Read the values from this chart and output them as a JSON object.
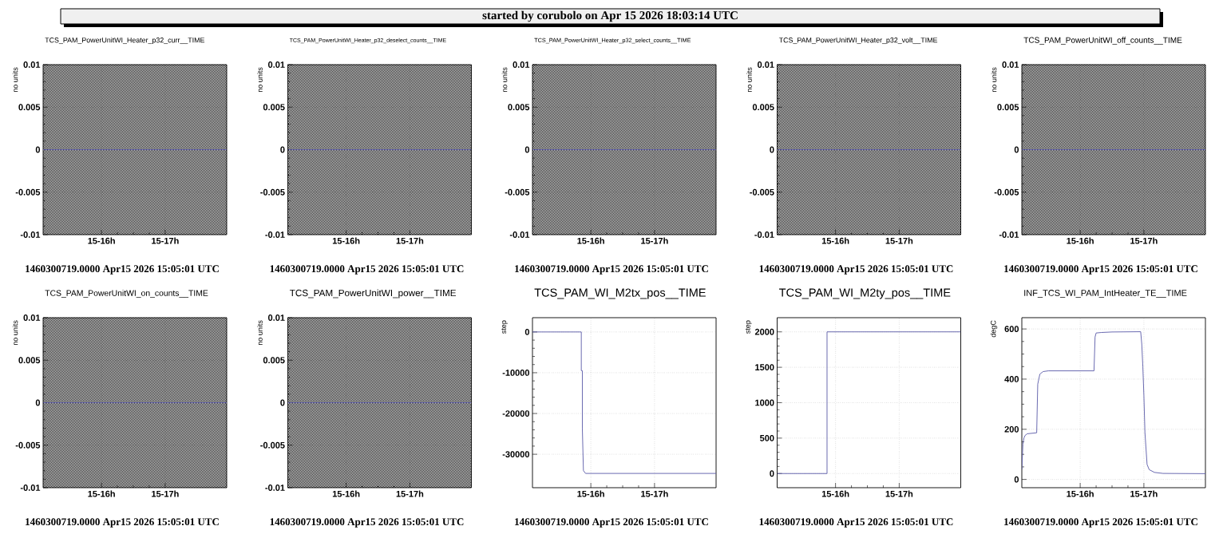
{
  "chart_data": [
    {
      "type": "other",
      "title": "started by corubolo on Apr 15 2026 18:03:14 UTC"
    },
    {
      "type": "line",
      "title": "TCS_PAM_PowerUnitWI_Heater_p32_curr__TIME",
      "ylabel": "no units",
      "xlim": [
        "2026-04-15T15:05",
        "2026-04-15T17:58"
      ],
      "xticks": [
        {
          "value": "2026-04-15T16:00",
          "label": "15-16h"
        },
        {
          "value": "2026-04-15T17:00",
          "label": "15-17h"
        }
      ],
      "ylim": [
        -0.01,
        0.01
      ],
      "yticks": [
        -0.01,
        -0.005,
        0,
        0.005,
        0.01
      ],
      "grid": true,
      "x": [
        "2026-04-15T15:05",
        "2026-04-15T17:58"
      ],
      "series": [
        {
          "color": "#5a5aa8",
          "values": [
            0,
            0
          ]
        }
      ],
      "bands": [
        {
          "axis": "x",
          "from": "2026-04-15T15:05",
          "to": "2026-04-15T17:58",
          "color": "#000000"
        }
      ],
      "annotations": [
        "1460300719.0000 Apr15 2026 15:05:01 UTC"
      ]
    },
    {
      "type": "line",
      "title": "TCS_PAM_PowerUnitWI_Heater_p32_deselect_counts__TIME",
      "ylabel": "no units",
      "xlim": [
        "2026-04-15T15:05",
        "2026-04-15T17:58"
      ],
      "xticks": [
        {
          "value": "2026-04-15T16:00",
          "label": "15-16h"
        },
        {
          "value": "2026-04-15T17:00",
          "label": "15-17h"
        }
      ],
      "ylim": [
        -0.01,
        0.01
      ],
      "yticks": [
        -0.01,
        -0.005,
        0,
        0.005,
        0.01
      ],
      "grid": true,
      "x": [
        "2026-04-15T15:05",
        "2026-04-15T17:58"
      ],
      "series": [
        {
          "color": "#5a5aa8",
          "values": [
            0,
            0
          ]
        }
      ],
      "bands": [
        {
          "axis": "x",
          "from": "2026-04-15T15:05",
          "to": "2026-04-15T17:58",
          "color": "#000000"
        }
      ],
      "annotations": [
        "1460300719.0000 Apr15 2026 15:05:01 UTC"
      ]
    },
    {
      "type": "line",
      "title": "TCS_PAM_PowerUnitWI_Heater_p32_select_counts__TIME",
      "ylabel": "no units",
      "xlim": [
        "2026-04-15T15:05",
        "2026-04-15T17:58"
      ],
      "xticks": [
        {
          "value": "2026-04-15T16:00",
          "label": "15-16h"
        },
        {
          "value": "2026-04-15T17:00",
          "label": "15-17h"
        }
      ],
      "ylim": [
        -0.01,
        0.01
      ],
      "yticks": [
        -0.01,
        -0.005,
        0,
        0.005,
        0.01
      ],
      "grid": true,
      "x": [
        "2026-04-15T15:05",
        "2026-04-15T17:58"
      ],
      "series": [
        {
          "color": "#5a5aa8",
          "values": [
            0,
            0
          ]
        }
      ],
      "bands": [
        {
          "axis": "x",
          "from": "2026-04-15T15:05",
          "to": "2026-04-15T17:58",
          "color": "#000000"
        }
      ],
      "annotations": [
        "1460300719.0000 Apr15 2026 15:05:01 UTC"
      ]
    },
    {
      "type": "line",
      "title": "TCS_PAM_PowerUnitWI_Heater_p32_volt__TIME",
      "ylabel": "no units",
      "xlim": [
        "2026-04-15T15:05",
        "2026-04-15T17:58"
      ],
      "xticks": [
        {
          "value": "2026-04-15T16:00",
          "label": "15-16h"
        },
        {
          "value": "2026-04-15T17:00",
          "label": "15-17h"
        }
      ],
      "ylim": [
        -0.01,
        0.01
      ],
      "yticks": [
        -0.01,
        -0.005,
        0,
        0.005,
        0.01
      ],
      "grid": true,
      "x": [
        "2026-04-15T15:05",
        "2026-04-15T17:58"
      ],
      "series": [
        {
          "color": "#5a5aa8",
          "values": [
            0,
            0
          ]
        }
      ],
      "bands": [
        {
          "axis": "x",
          "from": "2026-04-15T15:05",
          "to": "2026-04-15T17:58",
          "color": "#000000"
        }
      ],
      "annotations": [
        "1460300719.0000 Apr15 2026 15:05:01 UTC"
      ]
    },
    {
      "type": "line",
      "title": "TCS_PAM_PowerUnitWI_off_counts__TIME",
      "ylabel": "no units",
      "xlim": [
        "2026-04-15T15:05",
        "2026-04-15T17:58"
      ],
      "xticks": [
        {
          "value": "2026-04-15T16:00",
          "label": "15-16h"
        },
        {
          "value": "2026-04-15T17:00",
          "label": "15-17h"
        }
      ],
      "ylim": [
        -0.01,
        0.01
      ],
      "yticks": [
        -0.01,
        -0.005,
        0,
        0.005,
        0.01
      ],
      "grid": true,
      "x": [
        "2026-04-15T15:05",
        "2026-04-15T17:58"
      ],
      "series": [
        {
          "color": "#5a5aa8",
          "values": [
            0,
            0
          ]
        }
      ],
      "bands": [
        {
          "axis": "x",
          "from": "2026-04-15T15:05",
          "to": "2026-04-15T17:58",
          "color": "#000000"
        }
      ],
      "annotations": [
        "1460300719.0000 Apr15 2026 15:05:01 UTC"
      ]
    },
    {
      "type": "line",
      "title": "TCS_PAM_PowerUnitWI_on_counts__TIME",
      "ylabel": "no units",
      "xlim": [
        "2026-04-15T15:05",
        "2026-04-15T17:58"
      ],
      "xticks": [
        {
          "value": "2026-04-15T16:00",
          "label": "15-16h"
        },
        {
          "value": "2026-04-15T17:00",
          "label": "15-17h"
        }
      ],
      "ylim": [
        -0.01,
        0.01
      ],
      "yticks": [
        -0.01,
        -0.005,
        0,
        0.005,
        0.01
      ],
      "grid": true,
      "x": [
        "2026-04-15T15:05",
        "2026-04-15T17:58"
      ],
      "series": [
        {
          "color": "#5a5aa8",
          "values": [
            0,
            0
          ]
        }
      ],
      "bands": [
        {
          "axis": "x",
          "from": "2026-04-15T15:05",
          "to": "2026-04-15T17:58",
          "color": "#000000"
        }
      ],
      "annotations": [
        "1460300719.0000 Apr15 2026 15:05:01 UTC"
      ]
    },
    {
      "type": "line",
      "title": "TCS_PAM_PowerUnitWI_power__TIME",
      "ylabel": "no units",
      "xlim": [
        "2026-04-15T15:05",
        "2026-04-15T17:58"
      ],
      "xticks": [
        {
          "value": "2026-04-15T16:00",
          "label": "15-16h"
        },
        {
          "value": "2026-04-15T17:00",
          "label": "15-17h"
        }
      ],
      "ylim": [
        -0.01,
        0.01
      ],
      "yticks": [
        -0.01,
        -0.005,
        0,
        0.005,
        0.01
      ],
      "grid": true,
      "x": [
        "2026-04-15T15:05",
        "2026-04-15T17:58"
      ],
      "series": [
        {
          "color": "#5a5aa8",
          "values": [
            0,
            0
          ]
        }
      ],
      "bands": [
        {
          "axis": "x",
          "from": "2026-04-15T15:05",
          "to": "2026-04-15T17:58",
          "color": "#000000"
        }
      ],
      "annotations": [
        "1460300719.0000 Apr15 2026 15:05:01 UTC"
      ]
    },
    {
      "type": "line",
      "title": "TCS_PAM_WI_M2tx_pos__TIME",
      "ylabel": "step",
      "xlim": [
        "2026-04-15T15:05",
        "2026-04-15T17:58"
      ],
      "xticks": [
        {
          "value": "2026-04-15T16:00",
          "label": "15-16h"
        },
        {
          "value": "2026-04-15T17:00",
          "label": "15-17h"
        }
      ],
      "ylim": [
        -38200,
        3500
      ],
      "yticks": [
        -30000,
        -20000,
        -10000,
        0
      ],
      "grid": true,
      "x": [
        "2026-04-15T15:05",
        "2026-04-15T15:51",
        "2026-04-15T15:51",
        "2026-04-15T15:52",
        "2026-04-15T15:52",
        "2026-04-15T15:53",
        "2026-04-15T15:55",
        "2026-04-15T17:58"
      ],
      "series": [
        {
          "color": "#5a5aa8",
          "values": [
            0,
            0,
            -9500,
            -9500,
            -23700,
            -34000,
            -34700,
            -34700
          ]
        }
      ],
      "annotations": [
        "1460300719.0000 Apr15 2026 15:05:01 UTC"
      ]
    },
    {
      "type": "line",
      "title": "TCS_PAM_WI_M2ty_pos__TIME",
      "ylabel": "step",
      "xlim": [
        "2026-04-15T15:05",
        "2026-04-15T17:58"
      ],
      "xticks": [
        {
          "value": "2026-04-15T16:00",
          "label": "15-16h"
        },
        {
          "value": "2026-04-15T17:00",
          "label": "15-17h"
        }
      ],
      "ylim": [
        -200,
        2200
      ],
      "yticks": [
        0,
        500,
        1000,
        1500,
        2000
      ],
      "grid": true,
      "x": [
        "2026-04-15T15:05",
        "2026-04-15T15:52",
        "2026-04-15T15:52",
        "2026-04-15T17:58"
      ],
      "series": [
        {
          "color": "#5a5aa8",
          "values": [
            0,
            0,
            2000,
            2000
          ]
        }
      ],
      "annotations": [
        "1460300719.0000 Apr15 2026 15:05:01 UTC"
      ]
    },
    {
      "type": "line",
      "title": "INF_TCS_WI_PAM_IntHeater_TE__TIME",
      "ylabel": "degC",
      "xlim": [
        "2026-04-15T15:05",
        "2026-04-15T17:58"
      ],
      "xticks": [
        {
          "value": "2026-04-15T16:00",
          "label": "15-16h"
        },
        {
          "value": "2026-04-15T17:00",
          "label": "15-17h"
        }
      ],
      "ylim": [
        -33,
        645
      ],
      "yticks": [
        0,
        200,
        400,
        600
      ],
      "grid": true,
      "x": [
        "2026-04-15T15:05",
        "2026-04-15T15:06",
        "2026-04-15T15:07",
        "2026-04-15T15:08",
        "2026-04-15T15:10",
        "2026-04-15T15:19",
        "2026-04-15T15:20",
        "2026-04-15T15:22",
        "2026-04-15T15:25",
        "2026-04-15T15:30",
        "2026-04-15T16:13",
        "2026-04-15T16:14",
        "2026-04-15T16:15",
        "2026-04-15T16:20",
        "2026-04-15T16:30",
        "2026-04-15T16:57",
        "2026-04-15T16:58",
        "2026-04-15T16:59",
        "2026-04-15T17:00",
        "2026-04-15T17:01",
        "2026-04-15T17:03",
        "2026-04-15T17:05",
        "2026-04-15T17:10",
        "2026-04-15T17:18",
        "2026-04-15T17:58"
      ],
      "series": [
        {
          "color": "#5a5aa8",
          "values": [
            40,
            140,
            165,
            175,
            182,
            186,
            380,
            420,
            430,
            433,
            433,
            568,
            584,
            586,
            588,
            589,
            540,
            450,
            335,
            187,
            60,
            39,
            28,
            24,
            23
          ]
        }
      ],
      "annotations": [
        "1460300719.0000 Apr15 2026 15:05:01 UTC"
      ]
    }
  ]
}
